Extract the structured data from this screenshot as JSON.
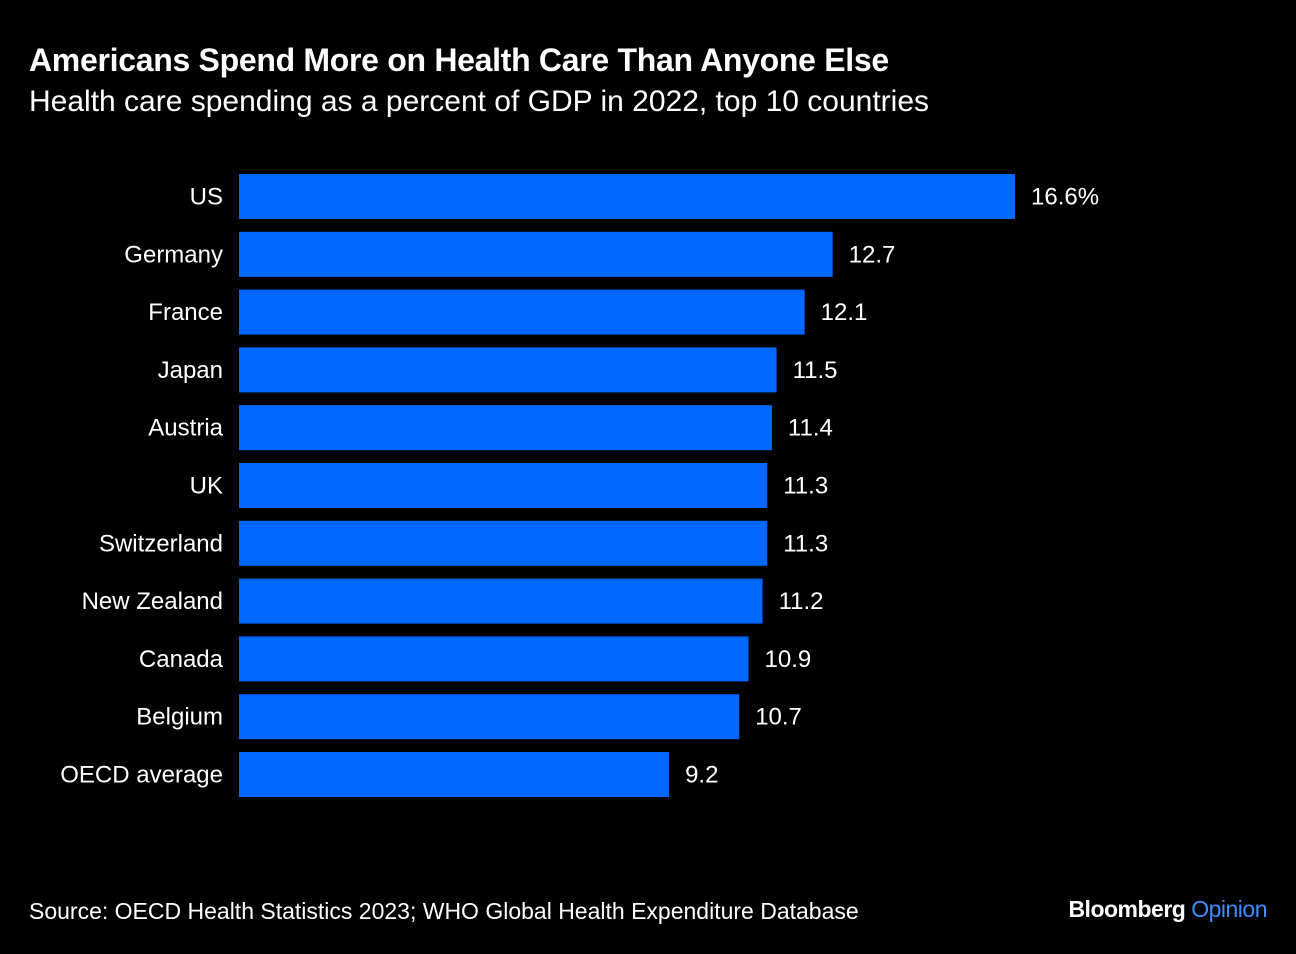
{
  "header": {
    "title": "Americans Spend More on Health Care Than Anyone Else",
    "subtitle": "Health care spending as a percent of GDP in 2022, top 10 countries"
  },
  "footer": {
    "source": "Source: OECD Health Statistics 2023; WHO Global Health Expenditure Database",
    "brand_primary": "Bloomberg",
    "brand_secondary": "Opinion"
  },
  "colors": {
    "background": "#000000",
    "bar": "#0068ff",
    "text": "#ffffff",
    "brand_accent": "#3f8cff"
  },
  "chart_data": {
    "type": "bar",
    "orientation": "horizontal",
    "title": "Americans Spend More on Health Care Than Anyone Else",
    "subtitle": "Health care spending as a percent of GDP in 2022, top 10 countries",
    "categories": [
      "US",
      "Germany",
      "France",
      "Japan",
      "Austria",
      "UK",
      "Switzerland",
      "New Zealand",
      "Canada",
      "Belgium",
      "OECD average"
    ],
    "values": [
      16.6,
      12.7,
      12.1,
      11.5,
      11.4,
      11.3,
      11.3,
      11.2,
      10.9,
      10.7,
      9.2
    ],
    "value_labels": [
      "16.6%",
      "12.7",
      "12.1",
      "11.5",
      "11.4",
      "11.3",
      "11.3",
      "11.2",
      "10.9",
      "10.7",
      "9.2"
    ],
    "xlim": [
      0,
      16.6
    ],
    "grid": false,
    "legend": "none"
  }
}
